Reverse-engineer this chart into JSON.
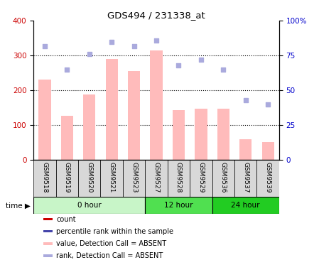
{
  "title": "GDS494 / 231338_at",
  "samples": [
    "GSM9518",
    "GSM9519",
    "GSM9520",
    "GSM9521",
    "GSM9523",
    "GSM9527",
    "GSM9528",
    "GSM9529",
    "GSM9536",
    "GSM9537",
    "GSM9539"
  ],
  "bar_values": [
    232,
    128,
    188,
    290,
    256,
    314,
    144,
    148,
    148,
    60,
    52
  ],
  "dot_values": [
    82,
    65,
    76,
    85,
    82,
    86,
    68,
    72,
    65,
    43,
    40
  ],
  "groups": [
    {
      "label": "0 hour",
      "start": 0,
      "end": 5,
      "color": "#c8f5c8"
    },
    {
      "label": "12 hour",
      "start": 5,
      "end": 8,
      "color": "#50e050"
    },
    {
      "label": "24 hour",
      "start": 8,
      "end": 11,
      "color": "#22cc22"
    }
  ],
  "bar_color": "#ffbbbb",
  "dot_color": "#aaaadd",
  "left_axis_color": "#cc0000",
  "right_axis_color": "#0000cc",
  "ylim_left": [
    0,
    400
  ],
  "ylim_right": [
    0,
    100
  ],
  "yticks_left": [
    0,
    100,
    200,
    300,
    400
  ],
  "ytick_labels_right": [
    "0",
    "25",
    "50",
    "75",
    "100%"
  ],
  "background_color": "#ffffff",
  "sample_box_color": "#d8d8d8",
  "legend_items": [
    {
      "label": "count",
      "color": "#cc0000"
    },
    {
      "label": "percentile rank within the sample",
      "color": "#4444aa"
    },
    {
      "label": "value, Detection Call = ABSENT",
      "color": "#ffbbbb"
    },
    {
      "label": "rank, Detection Call = ABSENT",
      "color": "#aaaadd"
    }
  ],
  "time_label": "time",
  "bar_width": 0.55
}
